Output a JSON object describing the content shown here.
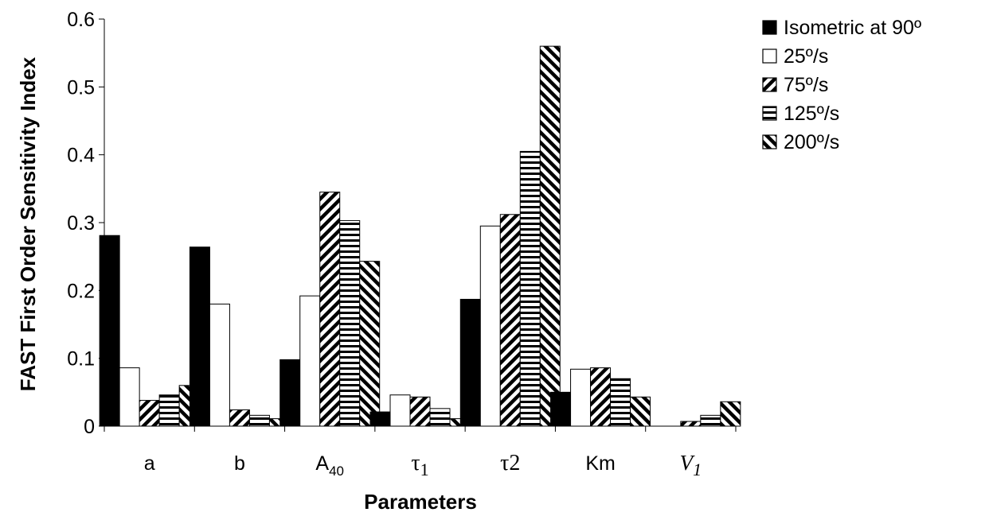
{
  "chart_data": {
    "type": "bar",
    "ylabel": "FAST First Order Sensitivity Index",
    "xlabel": "Parameters",
    "ylim": [
      0,
      0.6
    ],
    "yticks": [
      "0",
      "0.1",
      "0.2",
      "0.3",
      "0.4",
      "0.5",
      "0.6"
    ],
    "legend_position": "top-right",
    "categories": [
      {
        "text": "a",
        "style": "plain"
      },
      {
        "text": "b",
        "style": "plain"
      },
      {
        "text": "A",
        "sub": "40",
        "style": "plain"
      },
      {
        "text": "τ",
        "sub": "1",
        "style": "serif"
      },
      {
        "text": "τ2",
        "style": "serif"
      },
      {
        "text": "Km",
        "style": "plain"
      },
      {
        "text": "V",
        "sub": "1",
        "style": "italic"
      }
    ],
    "series": [
      {
        "name": "Isometric at 90º",
        "pattern": "solid-black",
        "values": [
          0.281,
          0.264,
          0.098,
          0.021,
          0.187,
          0.05,
          0.0
        ]
      },
      {
        "name": "25º/s",
        "pattern": "white",
        "values": [
          0.086,
          0.18,
          0.192,
          0.046,
          0.295,
          0.084,
          0.0
        ]
      },
      {
        "name": "75º/s",
        "pattern": "diagonal-forward",
        "values": [
          0.038,
          0.024,
          0.345,
          0.043,
          0.312,
          0.086,
          0.007
        ]
      },
      {
        "name": "125º/s",
        "pattern": "horizontal",
        "values": [
          0.046,
          0.016,
          0.303,
          0.026,
          0.405,
          0.07,
          0.016
        ]
      },
      {
        "name": "200º/s",
        "pattern": "diagonal-back",
        "values": [
          0.06,
          0.011,
          0.243,
          0.011,
          0.56,
          0.043,
          0.036
        ]
      }
    ]
  }
}
